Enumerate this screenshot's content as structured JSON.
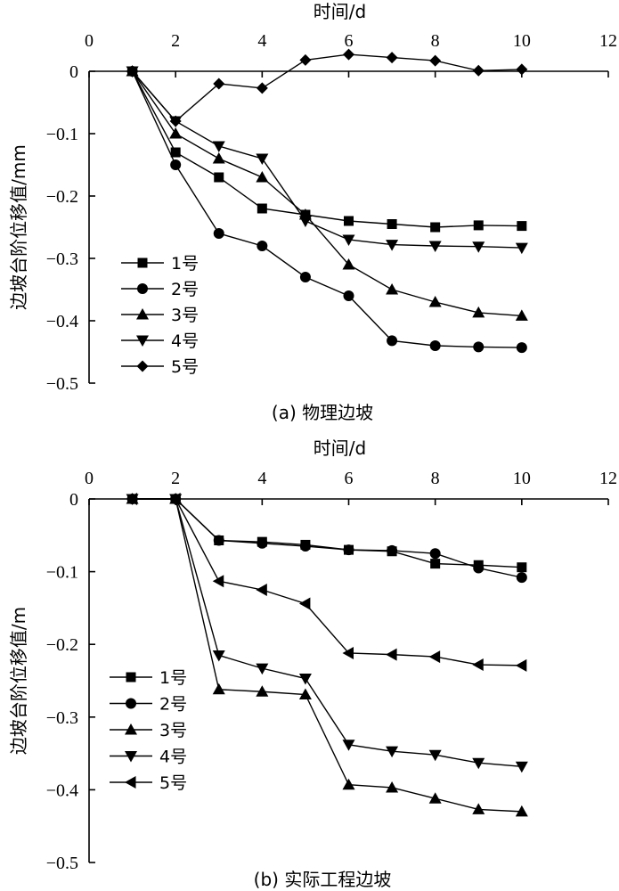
{
  "chart_data": [
    {
      "type": "line",
      "title": "(a) 物理边坡",
      "xlabel": "时间/d",
      "ylabel": "边坡台阶位移值/mm",
      "xlim": [
        0,
        12
      ],
      "ylim": [
        -0.5,
        0
      ],
      "xticks": [
        "0",
        "2",
        "4",
        "6",
        "8",
        "10",
        "12"
      ],
      "yticks": [
        "0",
        "−0.1",
        "−0.2",
        "−0.3",
        "−0.4",
        "−0.5"
      ],
      "x_axis_position": "top",
      "grid": false,
      "legend_position": "lower-left",
      "series": [
        {
          "name": "1号",
          "marker": "square",
          "x": [
            1,
            2,
            3,
            4,
            5,
            6,
            7,
            8,
            9,
            10
          ],
          "y": [
            0,
            -0.13,
            -0.17,
            -0.22,
            -0.23,
            -0.24,
            -0.245,
            -0.25,
            -0.247,
            -0.248
          ]
        },
        {
          "name": "2号",
          "marker": "circle",
          "x": [
            1,
            2,
            3,
            4,
            5,
            6,
            7,
            8,
            9,
            10
          ],
          "y": [
            0,
            -0.15,
            -0.26,
            -0.28,
            -0.33,
            -0.36,
            -0.432,
            -0.44,
            -0.442,
            -0.443
          ]
        },
        {
          "name": "3号",
          "marker": "triangle-up",
          "x": [
            1,
            2,
            3,
            4,
            5,
            6,
            7,
            8,
            9,
            10
          ],
          "y": [
            0,
            -0.1,
            -0.14,
            -0.17,
            -0.23,
            -0.31,
            -0.35,
            -0.37,
            -0.387,
            -0.392
          ]
        },
        {
          "name": "4号",
          "marker": "triangle-down",
          "x": [
            1,
            2,
            3,
            4,
            5,
            6,
            7,
            8,
            9,
            10
          ],
          "y": [
            0,
            -0.08,
            -0.12,
            -0.14,
            -0.24,
            -0.27,
            -0.278,
            -0.28,
            -0.281,
            -0.283
          ]
        },
        {
          "name": "5号",
          "marker": "diamond",
          "x": [
            1,
            2,
            3,
            4,
            5,
            6,
            7,
            8,
            9,
            10
          ],
          "y": [
            0,
            -0.08,
            -0.02,
            -0.027,
            0.018,
            0.027,
            0.022,
            0.017,
            0.001,
            0.003
          ]
        }
      ]
    },
    {
      "type": "line",
      "title": "(b) 实际工程边坡",
      "xlabel": "时间/d",
      "ylabel": "边坡台阶位移值/m",
      "xlim": [
        0,
        12
      ],
      "ylim": [
        -0.5,
        0
      ],
      "xticks": [
        "0",
        "2",
        "4",
        "6",
        "8",
        "10",
        "12"
      ],
      "yticks": [
        "0",
        "−0.1",
        "−0.2",
        "−0.3",
        "−0.4",
        "−0.5"
      ],
      "x_axis_position": "top",
      "grid": false,
      "legend_position": "lower-left",
      "series": [
        {
          "name": "1号",
          "marker": "square",
          "x": [
            1,
            2,
            3,
            4,
            5,
            6,
            7,
            8,
            9,
            10
          ],
          "y": [
            0,
            0,
            -0.057,
            -0.059,
            -0.063,
            -0.07,
            -0.072,
            -0.089,
            -0.091,
            -0.094
          ]
        },
        {
          "name": "2号",
          "marker": "circle",
          "x": [
            1,
            2,
            3,
            4,
            5,
            6,
            7,
            8,
            9,
            10
          ],
          "y": [
            0,
            0,
            -0.057,
            -0.061,
            -0.065,
            -0.07,
            -0.071,
            -0.075,
            -0.095,
            -0.108
          ]
        },
        {
          "name": "3号",
          "marker": "triangle-up",
          "x": [
            1,
            2,
            3,
            4,
            5,
            6,
            7,
            8,
            9,
            10
          ],
          "y": [
            0,
            0,
            -0.262,
            -0.265,
            -0.269,
            -0.393,
            -0.397,
            -0.412,
            -0.427,
            -0.43
          ]
        },
        {
          "name": "4号",
          "marker": "triangle-down",
          "x": [
            1,
            2,
            3,
            4,
            5,
            6,
            7,
            8,
            9,
            10
          ],
          "y": [
            0,
            0,
            -0.215,
            -0.233,
            -0.247,
            -0.338,
            -0.347,
            -0.352,
            -0.363,
            -0.368
          ]
        },
        {
          "name": "5号",
          "marker": "triangle-left",
          "x": [
            1,
            2,
            3,
            4,
            5,
            6,
            7,
            8,
            9,
            10
          ],
          "y": [
            0,
            0,
            -0.113,
            -0.125,
            -0.144,
            -0.212,
            -0.214,
            -0.217,
            -0.228,
            -0.229
          ]
        }
      ]
    }
  ]
}
